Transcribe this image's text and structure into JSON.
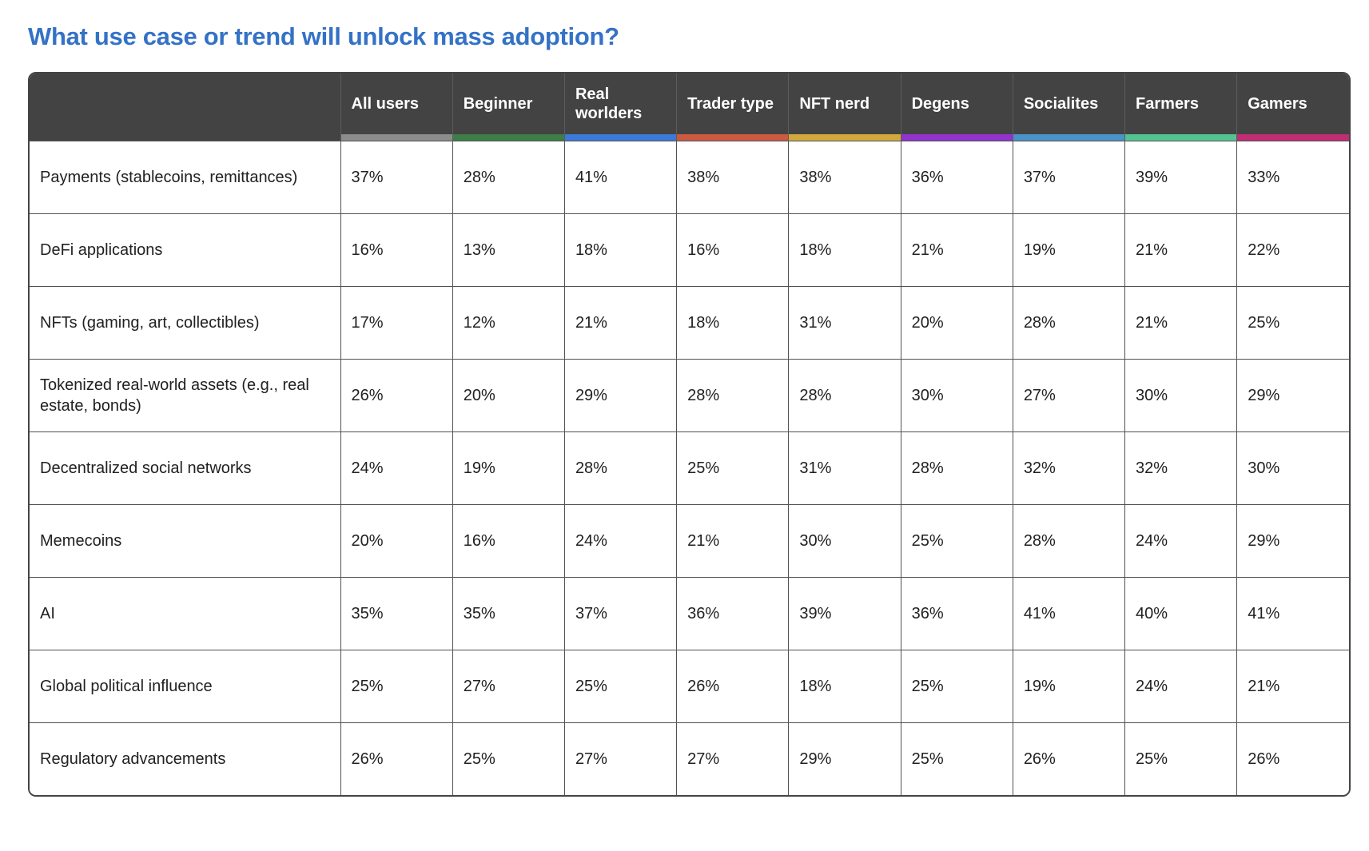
{
  "page": {
    "title": "What use case or trend will unlock mass adoption?"
  },
  "colors": {
    "title_blue": "#3472c6",
    "header_bg": "#434343",
    "grid_line": "#515151"
  },
  "table": {
    "corner_label": "",
    "columns": [
      {
        "label": "All users",
        "color": "#8c8c8c"
      },
      {
        "label": "Beginner",
        "color": "#3e7d47"
      },
      {
        "label": "Real worlders",
        "color": "#3c79d8"
      },
      {
        "label": "Trader type",
        "color": "#cc5a41"
      },
      {
        "label": "NFT nerd",
        "color": "#d3a93d"
      },
      {
        "label": "Degens",
        "color": "#9232cf"
      },
      {
        "label": "Socialites",
        "color": "#4a93c8"
      },
      {
        "label": "Farmers",
        "color": "#53c392"
      },
      {
        "label": "Gamers",
        "color": "#c02d73"
      }
    ],
    "rows": [
      {
        "label": "Payments (stablecoins, remittances)",
        "values": [
          "37%",
          "28%",
          "41%",
          "38%",
          "38%",
          "36%",
          "37%",
          "39%",
          "33%"
        ]
      },
      {
        "label": "DeFi applications",
        "values": [
          "16%",
          "13%",
          "18%",
          "16%",
          "18%",
          "21%",
          "19%",
          "21%",
          "22%"
        ]
      },
      {
        "label": "NFTs (gaming, art, collectibles)",
        "values": [
          "17%",
          "12%",
          "21%",
          "18%",
          "31%",
          "20%",
          "28%",
          "21%",
          "25%"
        ]
      },
      {
        "label": "Tokenized real-world assets (e.g., real estate, bonds)",
        "values": [
          "26%",
          "20%",
          "29%",
          "28%",
          "28%",
          "30%",
          "27%",
          "30%",
          "29%"
        ]
      },
      {
        "label": "Decentralized social networks",
        "values": [
          "24%",
          "19%",
          "28%",
          "25%",
          "31%",
          "28%",
          "32%",
          "32%",
          "30%"
        ]
      },
      {
        "label": "Memecoins",
        "values": [
          "20%",
          "16%",
          "24%",
          "21%",
          "30%",
          "25%",
          "28%",
          "24%",
          "29%"
        ]
      },
      {
        "label": "AI",
        "values": [
          "35%",
          "35%",
          "37%",
          "36%",
          "39%",
          "36%",
          "41%",
          "40%",
          "41%"
        ]
      },
      {
        "label": "Global political influence",
        "values": [
          "25%",
          "27%",
          "25%",
          "26%",
          "18%",
          "25%",
          "19%",
          "24%",
          "21%"
        ]
      },
      {
        "label": "Regulatory advancements",
        "values": [
          "26%",
          "25%",
          "27%",
          "27%",
          "29%",
          "25%",
          "26%",
          "25%",
          "26%"
        ]
      }
    ]
  },
  "chart_data": {
    "type": "table",
    "title": "What use case or trend will unlock mass adoption?",
    "columns": [
      "All users",
      "Beginner",
      "Real worlders",
      "Trader type",
      "NFT nerd",
      "Degens",
      "Socialites",
      "Farmers",
      "Gamers"
    ],
    "row_labels": [
      "Payments (stablecoins, remittances)",
      "DeFi applications",
      "NFTs (gaming, art, collectibles)",
      "Tokenized real-world assets (e.g., real estate, bonds)",
      "Decentralized social networks",
      "Memecoins",
      "AI",
      "Global political influence",
      "Regulatory advancements"
    ],
    "values_percent": [
      [
        37,
        28,
        41,
        38,
        38,
        36,
        37,
        39,
        33
      ],
      [
        16,
        13,
        18,
        16,
        18,
        21,
        19,
        21,
        22
      ],
      [
        17,
        12,
        21,
        18,
        31,
        20,
        28,
        21,
        25
      ],
      [
        26,
        20,
        29,
        28,
        28,
        30,
        27,
        30,
        29
      ],
      [
        24,
        19,
        28,
        25,
        31,
        28,
        32,
        32,
        30
      ],
      [
        20,
        16,
        24,
        21,
        30,
        25,
        28,
        24,
        29
      ],
      [
        35,
        35,
        37,
        36,
        39,
        36,
        41,
        40,
        41
      ],
      [
        25,
        27,
        25,
        26,
        18,
        25,
        19,
        24,
        21
      ],
      [
        26,
        25,
        27,
        27,
        29,
        25,
        26,
        25,
        26
      ]
    ],
    "column_accent_colors": [
      "#8c8c8c",
      "#3e7d47",
      "#3c79d8",
      "#cc5a41",
      "#d3a93d",
      "#9232cf",
      "#4a93c8",
      "#53c392",
      "#c02d73"
    ],
    "grid": true,
    "legend_position": "none"
  }
}
